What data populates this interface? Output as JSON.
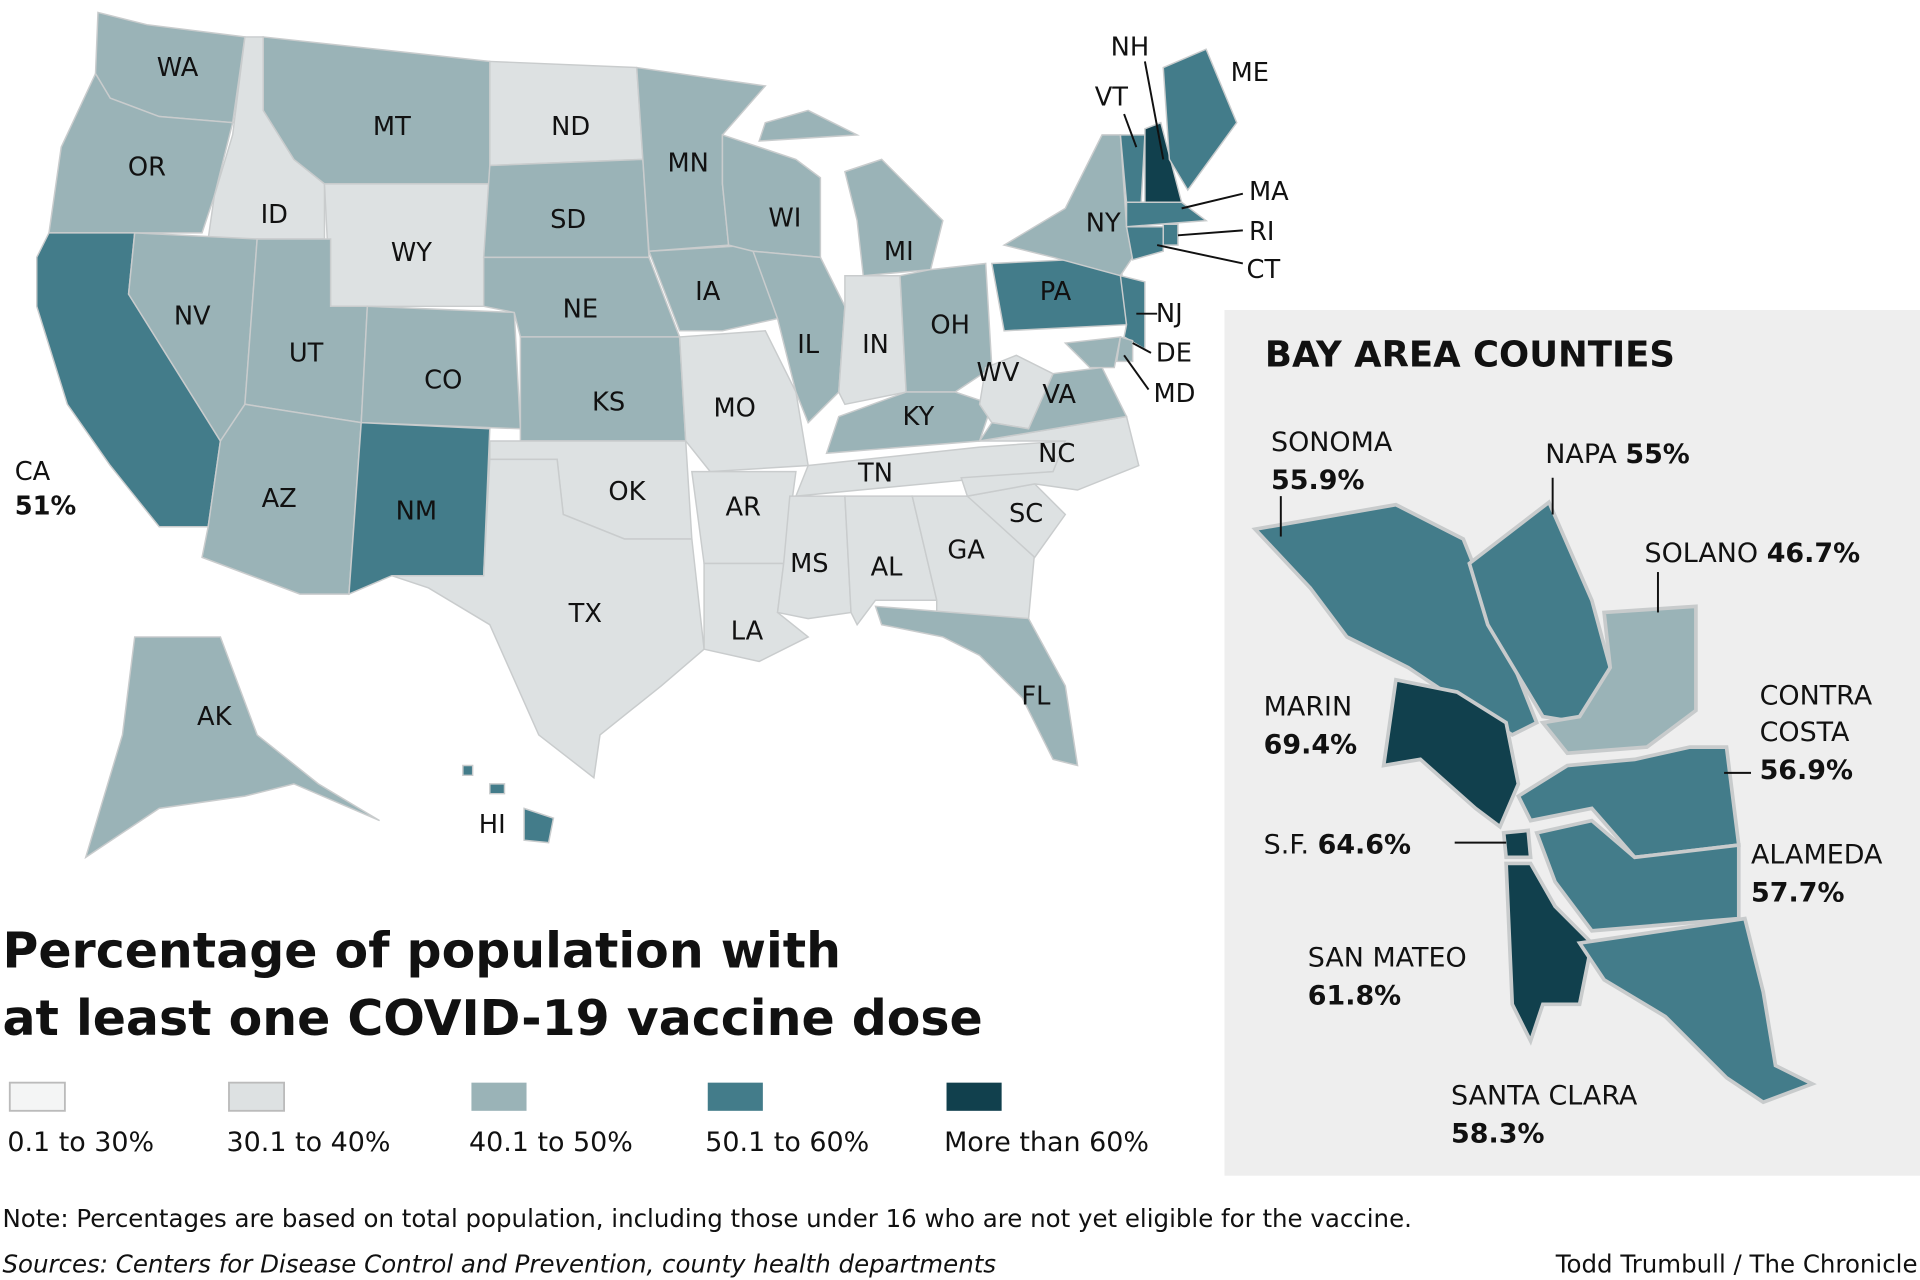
{
  "title": {
    "line1": "Percentage of population with",
    "line2": "at least one COVID-19 vaccine dose"
  },
  "legend": [
    {
      "label": "0.1 to 30%",
      "color": "#f4f5f5"
    },
    {
      "label": "30.1 to 40%",
      "color": "#dde1e2"
    },
    {
      "label": "40.1 to 50%",
      "color": "#9ab3b7"
    },
    {
      "label": "50.1 to 60%",
      "color": "#437c8a"
    },
    {
      "label": "More than 60%",
      "color": "#11404d"
    }
  ],
  "states": [
    {
      "abbr": "WA",
      "cat": 2
    },
    {
      "abbr": "OR",
      "cat": 2
    },
    {
      "abbr": "CA",
      "cat": 3,
      "value": "51%"
    },
    {
      "abbr": "ID",
      "cat": 1
    },
    {
      "abbr": "NV",
      "cat": 2
    },
    {
      "abbr": "MT",
      "cat": 2
    },
    {
      "abbr": "WY",
      "cat": 1
    },
    {
      "abbr": "UT",
      "cat": 2
    },
    {
      "abbr": "CO",
      "cat": 2
    },
    {
      "abbr": "AZ",
      "cat": 2
    },
    {
      "abbr": "NM",
      "cat": 3
    },
    {
      "abbr": "ND",
      "cat": 1
    },
    {
      "abbr": "SD",
      "cat": 2
    },
    {
      "abbr": "NE",
      "cat": 2
    },
    {
      "abbr": "KS",
      "cat": 2
    },
    {
      "abbr": "OK",
      "cat": 1
    },
    {
      "abbr": "TX",
      "cat": 1
    },
    {
      "abbr": "MN",
      "cat": 2
    },
    {
      "abbr": "IA",
      "cat": 2
    },
    {
      "abbr": "MO",
      "cat": 1
    },
    {
      "abbr": "AR",
      "cat": 1
    },
    {
      "abbr": "LA",
      "cat": 1
    },
    {
      "abbr": "WI",
      "cat": 2
    },
    {
      "abbr": "IL",
      "cat": 2
    },
    {
      "abbr": "MI",
      "cat": 2
    },
    {
      "abbr": "IN",
      "cat": 1
    },
    {
      "abbr": "OH",
      "cat": 2
    },
    {
      "abbr": "KY",
      "cat": 2
    },
    {
      "abbr": "TN",
      "cat": 1
    },
    {
      "abbr": "MS",
      "cat": 1
    },
    {
      "abbr": "AL",
      "cat": 1
    },
    {
      "abbr": "GA",
      "cat": 1
    },
    {
      "abbr": "SC",
      "cat": 1
    },
    {
      "abbr": "NC",
      "cat": 1
    },
    {
      "abbr": "FL",
      "cat": 2
    },
    {
      "abbr": "WV",
      "cat": 1
    },
    {
      "abbr": "VA",
      "cat": 2
    },
    {
      "abbr": "PA",
      "cat": 3
    },
    {
      "abbr": "NY",
      "cat": 2
    },
    {
      "abbr": "NJ",
      "cat": 3
    },
    {
      "abbr": "MD",
      "cat": 2
    },
    {
      "abbr": "DE",
      "cat": 2
    },
    {
      "abbr": "VT",
      "cat": 3
    },
    {
      "abbr": "NH",
      "cat": 4
    },
    {
      "abbr": "ME",
      "cat": 3
    },
    {
      "abbr": "MA",
      "cat": 3
    },
    {
      "abbr": "CT",
      "cat": 3
    },
    {
      "abbr": "RI",
      "cat": 3
    },
    {
      "abbr": "AK",
      "cat": 2
    },
    {
      "abbr": "HI",
      "cat": 3
    }
  ],
  "bay_area": {
    "title": "BAY AREA COUNTIES",
    "counties": [
      {
        "name": "SONOMA",
        "value": "55.9%",
        "cat": 3
      },
      {
        "name": "NAPA",
        "value": "55%",
        "cat": 3
      },
      {
        "name": "SOLANO",
        "value": "46.7%",
        "cat": 2
      },
      {
        "name": "MARIN",
        "value": "69.4%",
        "cat": 4
      },
      {
        "name": "CONTRA COSTA",
        "name_lines": [
          "CONTRA",
          "COSTA"
        ],
        "value": "56.9%",
        "cat": 3
      },
      {
        "name": "S.F.",
        "value": "64.6%",
        "cat": 4
      },
      {
        "name": "ALAMEDA",
        "value": "57.7%",
        "cat": 3
      },
      {
        "name": "SAN MATEO",
        "value": "61.8%",
        "cat": 4
      },
      {
        "name": "SANTA CLARA",
        "value": "58.3%",
        "cat": 3
      }
    ]
  },
  "note": "Note: Percentages are based on total population, including those under 16 who are not yet eligible for the vaccine.",
  "sources": "Sources: Centers for Disease Control and Prevention, county health departments",
  "credit": "Todd Trumbull / The Chronicle"
}
